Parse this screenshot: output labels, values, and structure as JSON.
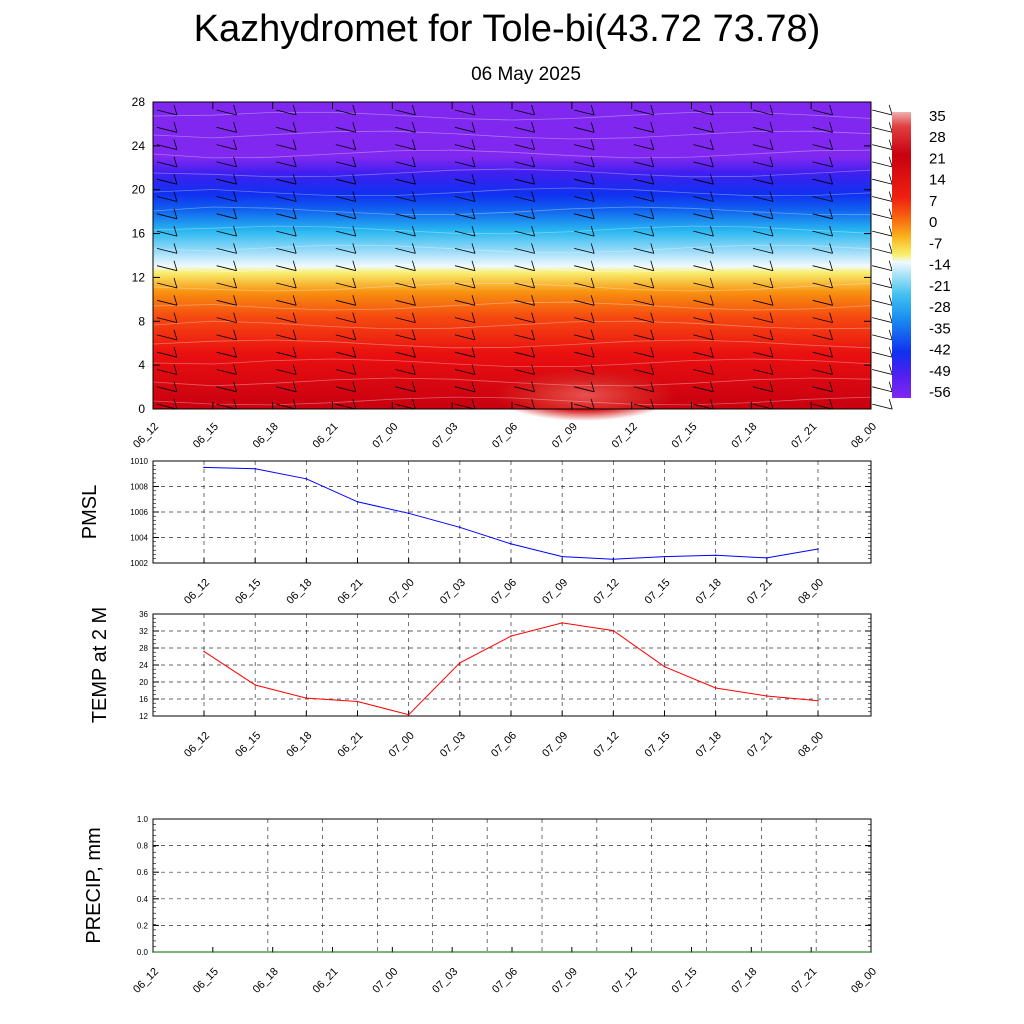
{
  "header": {
    "title": "Kazhydromet for Tole-bi(43.72 73.78)",
    "subtitle": "06 May 2025"
  },
  "chart_data": [
    {
      "type": "heatmap",
      "name": "vertical-cross-section",
      "x_ticks": [
        "06_12",
        "06_15",
        "06_18",
        "06_21",
        "07_00",
        "07_03",
        "07_06",
        "07_09",
        "07_12",
        "07_15",
        "07_18",
        "07_21",
        "08_00"
      ],
      "y_ticks": [
        0,
        4,
        8,
        12,
        16,
        20,
        24,
        28
      ],
      "ylim": [
        0,
        28
      ],
      "colorbar_ticks": [
        35,
        28,
        21,
        14,
        7,
        0,
        -7,
        -14,
        -21,
        -28,
        -35,
        -42,
        -49,
        -56
      ],
      "colors": {
        "hot": "#c80010",
        "warm": "#f01010",
        "orange": "#f89010",
        "yellow": "#f8f070",
        "light": "#f0f8ff",
        "cyan": "#28b8f0",
        "blue": "#1030f0",
        "violet": "#8028f0"
      },
      "overlay": "wind barbs and white contour lines"
    },
    {
      "type": "line",
      "ylabel": "PMSL",
      "ylim": [
        1002,
        1010
      ],
      "yticks": [
        1002,
        1004,
        1006,
        1008,
        1010
      ],
      "x": [
        "06_12",
        "06_15",
        "06_18",
        "06_21",
        "07_00",
        "07_03",
        "07_06",
        "07_09",
        "07_12",
        "07_15",
        "07_18",
        "07_21",
        "08_00"
      ],
      "values": [
        1009.5,
        1009.4,
        1008.6,
        1006.8,
        1005.9,
        1004.8,
        1003.5,
        1002.5,
        1002.3,
        1002.5,
        1002.6,
        1002.4,
        1003.1
      ],
      "color": "#0000ff",
      "grid": true
    },
    {
      "type": "line",
      "ylabel": "TEMP at 2 M",
      "ylim": [
        12,
        36
      ],
      "yticks": [
        12,
        16,
        20,
        24,
        28,
        32,
        36
      ],
      "x": [
        "06_12",
        "06_15",
        "06_18",
        "06_21",
        "07_00",
        "07_03",
        "07_06",
        "07_09",
        "07_12",
        "07_15",
        "07_18",
        "07_21",
        "08_00"
      ],
      "values": [
        27.2,
        19.3,
        16.2,
        15.4,
        12.3,
        24.5,
        30.8,
        33.9,
        32.1,
        23.6,
        18.6,
        16.7,
        15.6
      ],
      "color": "#ff0000",
      "grid": true
    },
    {
      "type": "line",
      "ylabel": "PRECIP, mm",
      "ylim": [
        0,
        1
      ],
      "yticks": [
        "0.0",
        "0.2",
        "0.4",
        "0.6",
        "0.8",
        "1.0"
      ],
      "x": [
        "06_12",
        "06_15",
        "06_18",
        "06_21",
        "07_00",
        "07_03",
        "07_06",
        "07_09",
        "07_12",
        "07_15",
        "07_18",
        "07_21",
        "08_00"
      ],
      "values": [
        0,
        0,
        0,
        0,
        0,
        0,
        0,
        0,
        0,
        0,
        0,
        0,
        0
      ],
      "color": "#006400",
      "grid": true
    }
  ]
}
